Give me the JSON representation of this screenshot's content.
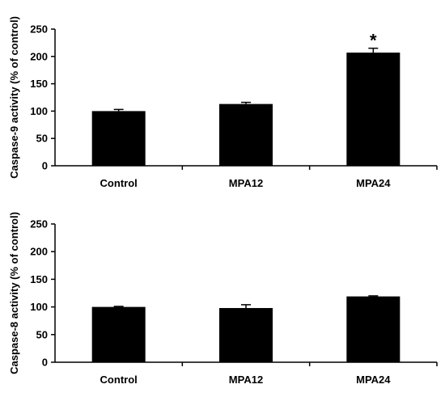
{
  "chart_data": [
    {
      "type": "bar",
      "ylabel": "Caspase-9 activity (% of control)",
      "xlabel": "",
      "categories": [
        "Control",
        "MPA12",
        "MPA24"
      ],
      "values": [
        100,
        113,
        207
      ],
      "errors": [
        3,
        3,
        8
      ],
      "annotations": [
        "",
        "",
        "*"
      ],
      "ylim": [
        0,
        250
      ],
      "yticks": [
        "0",
        "50",
        "100",
        "150",
        "200",
        "250"
      ],
      "bar_color": "#000000",
      "grid": false,
      "legend": "none"
    },
    {
      "type": "bar",
      "ylabel": "Caspase-8 activity (% of control)",
      "xlabel": "",
      "categories": [
        "Control",
        "MPA12",
        "MPA24"
      ],
      "values": [
        100,
        98,
        119
      ],
      "errors": [
        1,
        6,
        1
      ],
      "annotations": [
        "",
        "",
        ""
      ],
      "ylim": [
        0,
        250
      ],
      "yticks": [
        "0",
        "50",
        "100",
        "150",
        "200",
        "250"
      ],
      "bar_color": "#000000",
      "grid": false,
      "legend": "none"
    }
  ]
}
